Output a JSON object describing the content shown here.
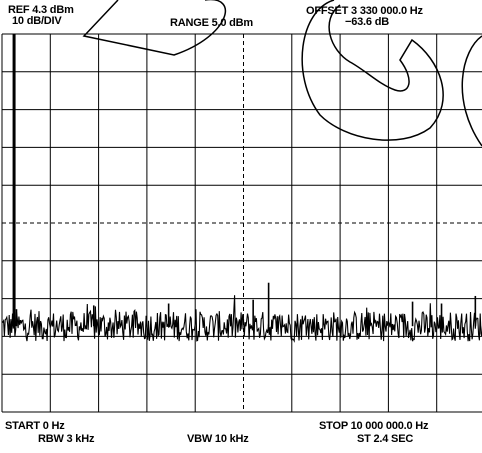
{
  "chart_data": {
    "type": "line",
    "title": "",
    "header": {
      "ref": "REF 4.3 dBm",
      "scale": "10 dB/DIV",
      "range": "RANGE 5.0 dBm",
      "offset": "OFFSET 3 330 000.0  Hz",
      "marker": "−63.6 dB"
    },
    "footer": {
      "start": "START 0  Hz",
      "stop": "STOP 10 000 000.0  Hz",
      "rbw": "RBW 3 kHz",
      "vbw": "VBW 10 kHz",
      "sweep": "ST 2.4 SEC"
    },
    "x_unit": "Hz",
    "y_unit": "dBm",
    "xlim": [
      0,
      10000000
    ],
    "ylim": [
      -95.7,
      4.3
    ],
    "divisions": {
      "x": 10,
      "y": 10
    },
    "grid": true,
    "dashed_center_lines": true,
    "series": [
      {
        "noise_floor_dBm": -73,
        "noise_span_dB": 4,
        "carrier": {
          "x": 250000,
          "y": 4.3
        },
        "spurs": [
          {
            "x": 5520000,
            "y": -61.5
          },
          {
            "x": 300000,
            "y": -68.5
          },
          {
            "x": 1900000,
            "y": -67.5
          },
          {
            "x": 3450000,
            "y": -67
          },
          {
            "x": 5200000,
            "y": -66
          },
          {
            "x": 8500000,
            "y": -66.5
          },
          {
            "x": 9100000,
            "y": -67
          },
          {
            "x": 9800000,
            "y": -65
          }
        ]
      }
    ],
    "colors": {
      "trace": "#000000",
      "grid": "#000000",
      "background": "#ffffff"
    }
  }
}
